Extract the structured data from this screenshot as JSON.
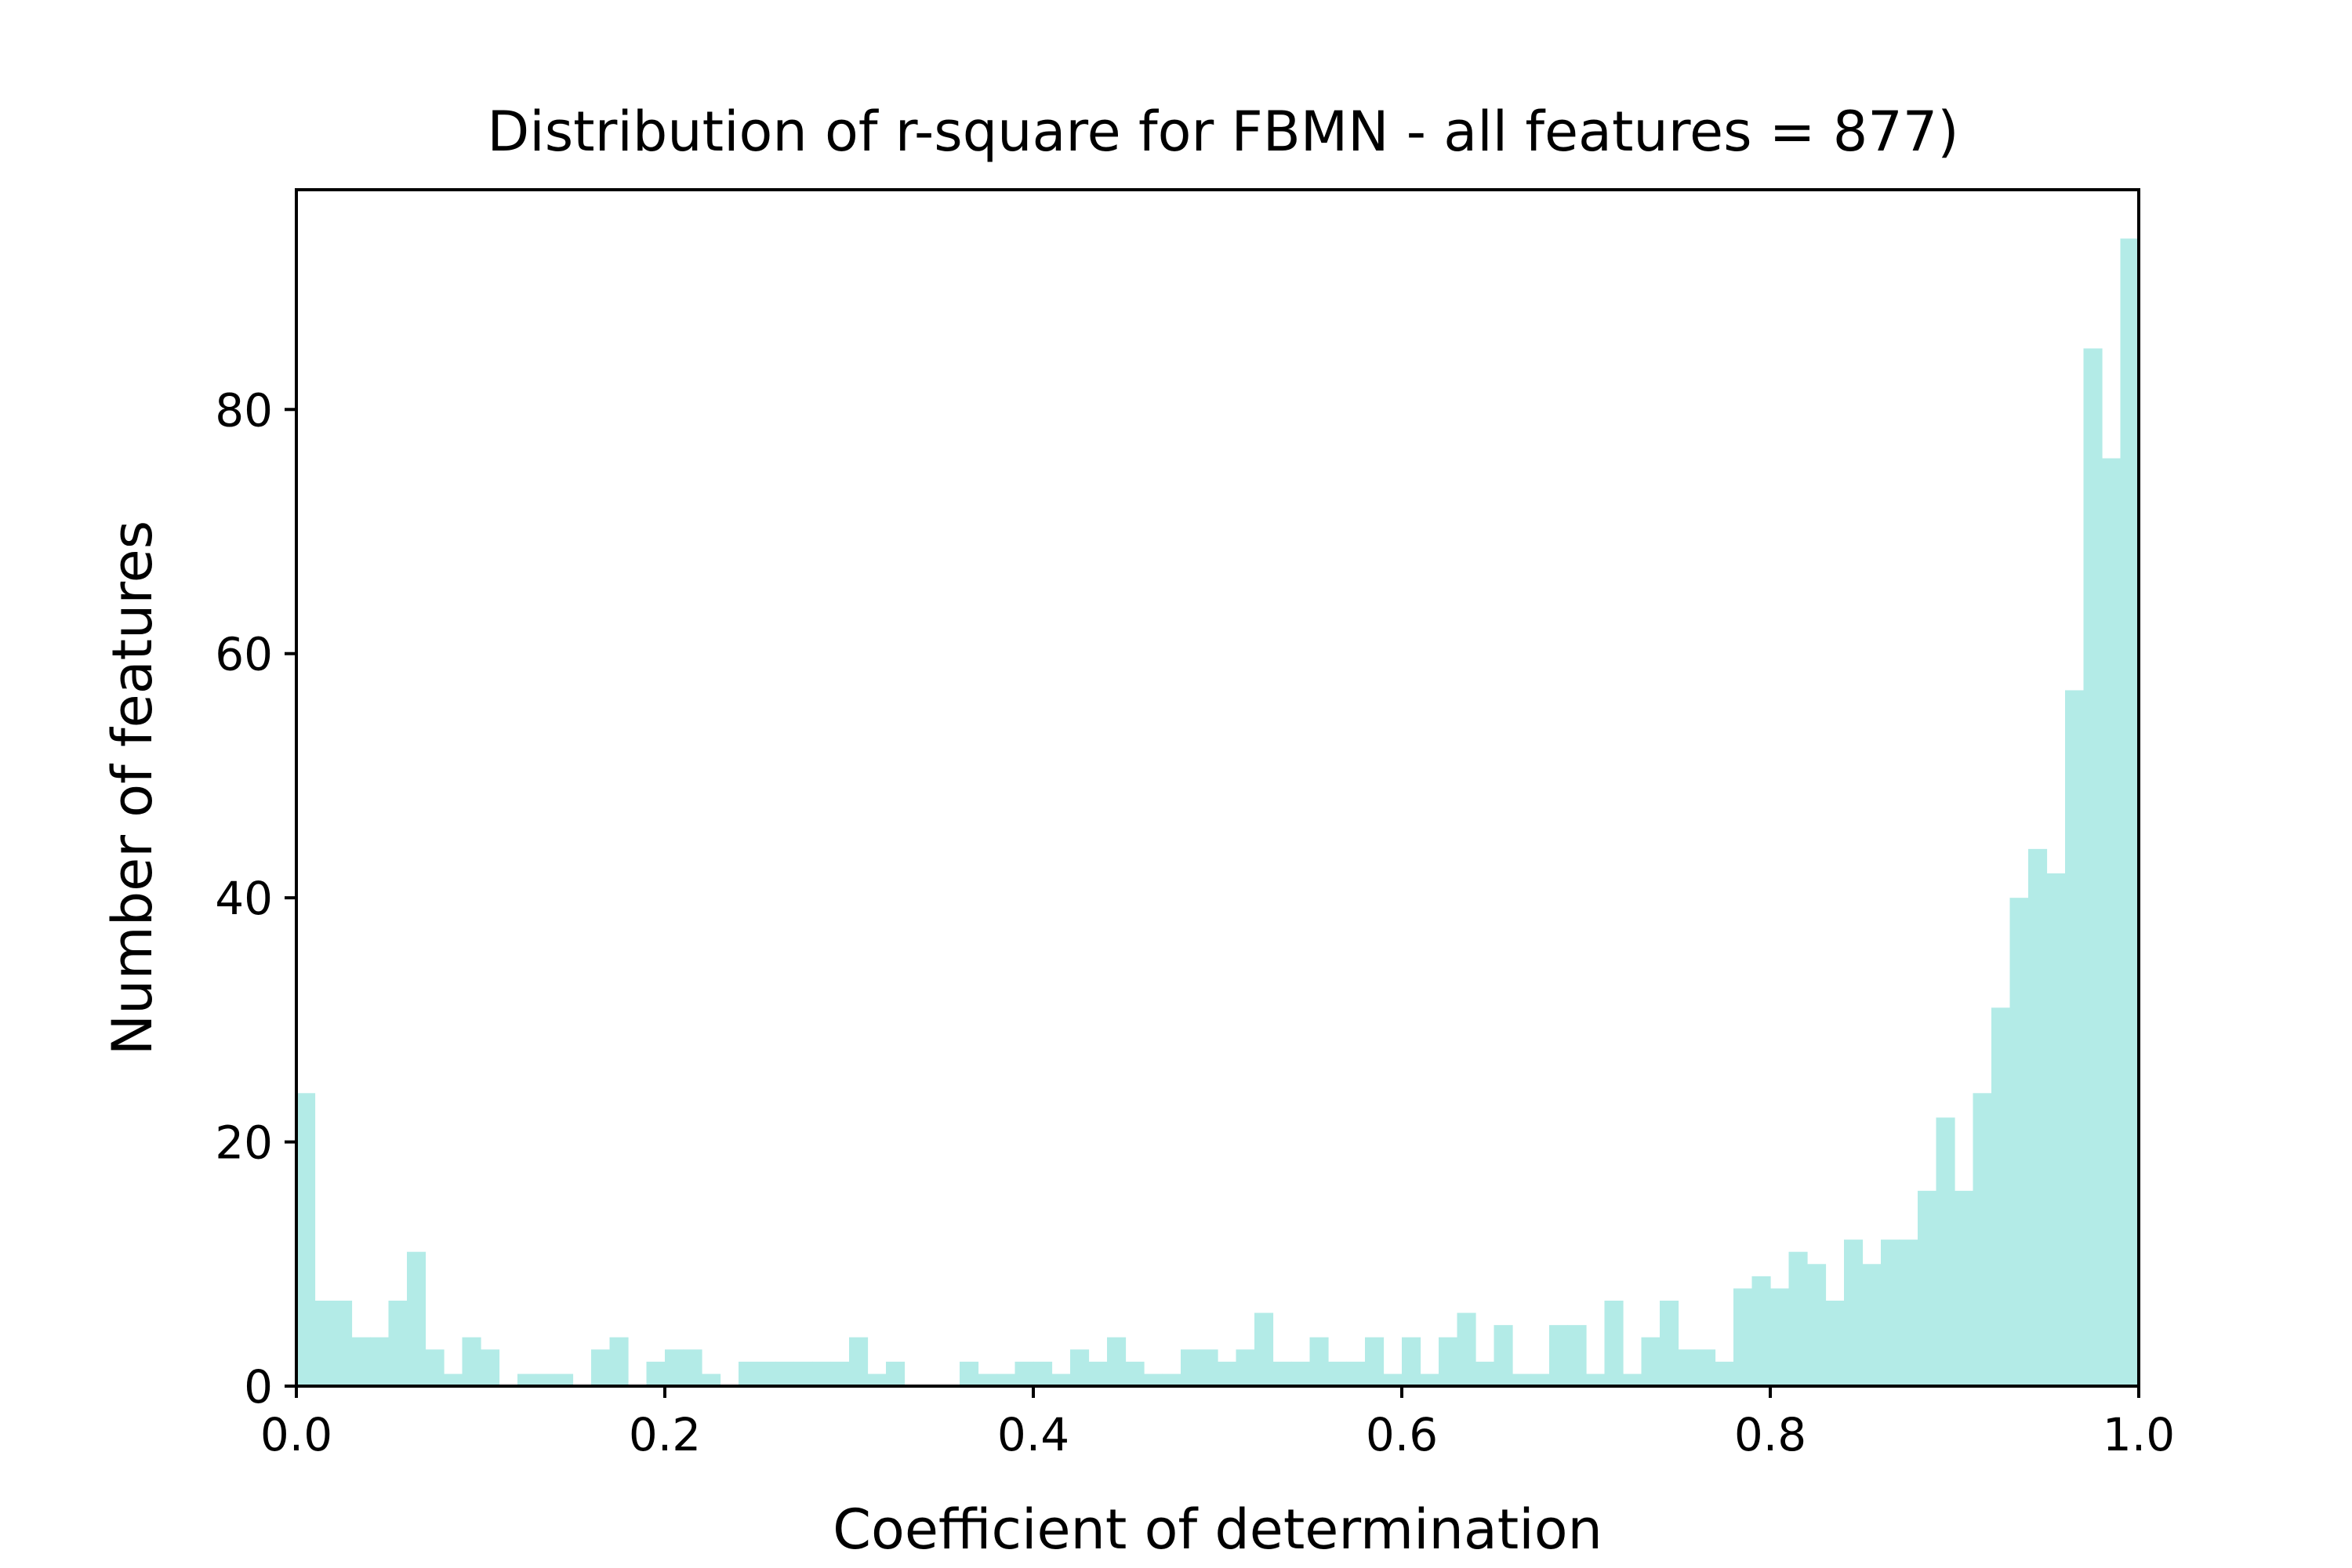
{
  "chart_data": {
    "type": "bar",
    "title": "Distribution of r-square for FBMN - all features = 877)",
    "xlabel": "Coefficient of determination",
    "ylabel": "Number of features",
    "xlim": [
      0.0,
      1.0
    ],
    "ylim": [
      0,
      98
    ],
    "grid": false,
    "bar_color": "#b3ebe7",
    "bin_width": 0.01,
    "x_ticks": [
      "0.0",
      "0.2",
      "0.4",
      "0.6",
      "0.8",
      "1.0"
    ],
    "y_ticks": [
      "0",
      "20",
      "40",
      "60",
      "80"
    ],
    "bin_starts": [
      0.0,
      0.01,
      0.02,
      0.03,
      0.04,
      0.05,
      0.06,
      0.07,
      0.08,
      0.09,
      0.1,
      0.11,
      0.12,
      0.13,
      0.14,
      0.15,
      0.16,
      0.17,
      0.18,
      0.19,
      0.2,
      0.21,
      0.22,
      0.23,
      0.24,
      0.25,
      0.26,
      0.27,
      0.28,
      0.29,
      0.3,
      0.31,
      0.32,
      0.33,
      0.34,
      0.35,
      0.36,
      0.37,
      0.38,
      0.39,
      0.4,
      0.41,
      0.42,
      0.43,
      0.44,
      0.45,
      0.46,
      0.47,
      0.48,
      0.49,
      0.5,
      0.51,
      0.52,
      0.53,
      0.54,
      0.55,
      0.56,
      0.57,
      0.58,
      0.59,
      0.6,
      0.61,
      0.62,
      0.63,
      0.64,
      0.65,
      0.66,
      0.67,
      0.68,
      0.69,
      0.7,
      0.71,
      0.72,
      0.73,
      0.74,
      0.75,
      0.76,
      0.77,
      0.78,
      0.79,
      0.8,
      0.81,
      0.82,
      0.83,
      0.84,
      0.85,
      0.86,
      0.87,
      0.88,
      0.89,
      0.9,
      0.91,
      0.92,
      0.93,
      0.94,
      0.95,
      0.96,
      0.97,
      0.98,
      0.99
    ],
    "values": [
      24,
      7,
      7,
      4,
      4,
      7,
      11,
      3,
      1,
      4,
      3,
      0,
      1,
      1,
      1,
      0,
      3,
      4,
      0,
      2,
      3,
      3,
      1,
      0,
      2,
      2,
      2,
      2,
      2,
      2,
      4,
      1,
      2,
      0,
      0,
      0,
      2,
      1,
      1,
      2,
      2,
      1,
      3,
      2,
      4,
      2,
      1,
      1,
      3,
      3,
      2,
      3,
      6,
      2,
      2,
      4,
      2,
      2,
      4,
      1,
      4,
      1,
      4,
      6,
      2,
      5,
      1,
      1,
      5,
      5,
      1,
      7,
      1,
      4,
      7,
      3,
      3,
      2,
      8,
      9,
      8,
      11,
      10,
      7,
      12,
      10,
      12,
      12,
      16,
      22,
      16,
      24,
      31,
      40,
      44,
      42,
      57,
      85,
      76,
      94
    ]
  }
}
